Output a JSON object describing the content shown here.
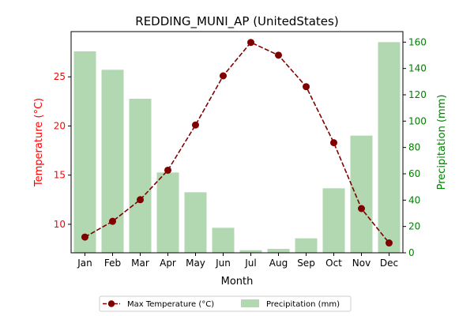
{
  "chart_data": {
    "type": "bar+line",
    "title": "REDDING_MUNI_AP (UnitedStates)",
    "xlabel": "Month",
    "ylabel_left": "Temperature (°C)",
    "ylabel_right": "Precipitation (mm)",
    "categories": [
      "Jan",
      "Feb",
      "Mar",
      "Apr",
      "May",
      "Jun",
      "Jul",
      "Aug",
      "Sep",
      "Oct",
      "Nov",
      "Dec"
    ],
    "y_left_ticks": [
      10,
      15,
      20,
      25
    ],
    "y_left_lim": [
      7.1,
      29.6
    ],
    "y_right_ticks": [
      0,
      20,
      40,
      60,
      80,
      100,
      120,
      140,
      160
    ],
    "y_right_lim": [
      0,
      168
    ],
    "grid": false,
    "legend_position": "bottom-center",
    "series": [
      {
        "name": "Max Temperature (°C)",
        "kind": "line",
        "axis": "left",
        "color": "#800000",
        "values": [
          8.7,
          10.3,
          12.5,
          15.5,
          20.1,
          25.1,
          28.5,
          27.2,
          24.0,
          18.3,
          11.6,
          8.1
        ]
      },
      {
        "name": "Precipitation (mm)",
        "kind": "bar",
        "axis": "right",
        "color": "#b2d8b2",
        "values": [
          153,
          139,
          117,
          61,
          46,
          19,
          2,
          3,
          11,
          49,
          89,
          160
        ]
      }
    ],
    "left_axis_color": "#ff0000",
    "right_axis_color": "#008000"
  }
}
